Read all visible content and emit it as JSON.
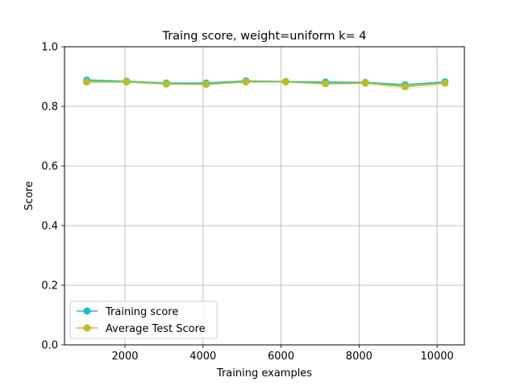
{
  "chart_data": {
    "type": "line",
    "title": "Traing score, weight=uniform k= 4",
    "xlabel": "Training examples",
    "ylabel": "Score",
    "xlim": [
      450,
      10700
    ],
    "ylim": [
      0,
      1.0
    ],
    "xticks": [
      2000,
      4000,
      6000,
      8000,
      10000
    ],
    "yticks": [
      0.0,
      0.2,
      0.4,
      0.6,
      0.8,
      1.0
    ],
    "ytick_labels": [
      "0.0",
      "0.2",
      "0.4",
      "0.6",
      "0.8",
      "1.0"
    ],
    "grid": true,
    "legend_position": "lower-left",
    "x": [
      1020,
      2040,
      3060,
      4080,
      5100,
      6120,
      7140,
      8160,
      9180,
      10200
    ],
    "series": [
      {
        "name": "Training score",
        "color": "#17becf",
        "marker": "circle",
        "values": [
          0.888,
          0.884,
          0.878,
          0.878,
          0.885,
          0.883,
          0.881,
          0.88,
          0.872,
          0.882
        ],
        "band_low": [
          0.884,
          0.881,
          0.875,
          0.875,
          0.882,
          0.88,
          0.878,
          0.877,
          0.869,
          0.879
        ],
        "band_high": [
          0.892,
          0.887,
          0.881,
          0.881,
          0.888,
          0.886,
          0.884,
          0.883,
          0.875,
          0.885
        ]
      },
      {
        "name": "Average Test Score",
        "color": "#bcbd22",
        "marker": "circle",
        "values": [
          0.882,
          0.882,
          0.875,
          0.874,
          0.882,
          0.882,
          0.876,
          0.878,
          0.866,
          0.878
        ],
        "band_low": [
          0.877,
          0.879,
          0.871,
          0.87,
          0.88,
          0.88,
          0.872,
          0.874,
          0.855,
          0.872
        ],
        "band_high": [
          0.887,
          0.885,
          0.879,
          0.878,
          0.884,
          0.884,
          0.88,
          0.882,
          0.878,
          0.884
        ]
      }
    ]
  }
}
